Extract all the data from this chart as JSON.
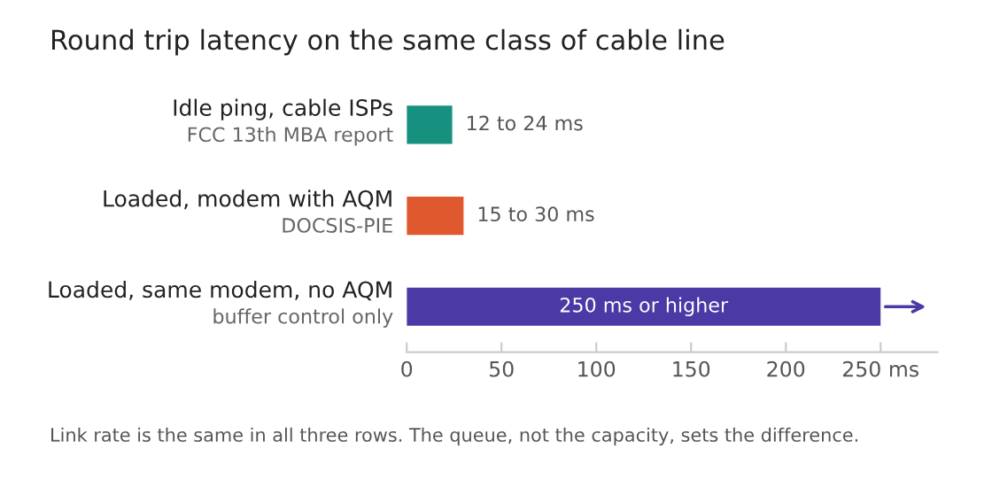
{
  "chart_data": {
    "type": "bar",
    "orientation": "horizontal",
    "title": "Round trip latency on the same class of cable line",
    "categories": [
      "Idle ping, cable ISPs\nFCC 13th MBA report",
      "Loaded, modem with AQM\nDOCSIS-PIE",
      "Loaded, same modem, no AQM\nbuffer control only"
    ],
    "values": [
      24,
      30,
      250
    ],
    "colors": [
      "#17917f",
      "#e0582e",
      "#4b3aa6"
    ],
    "value_labels": [
      "12 to 24 ms",
      "15 to 30 ms",
      "250 ms or higher"
    ],
    "xlim": [
      0,
      280
    ],
    "xticks": [
      0,
      50,
      100,
      150,
      200,
      {
        "value": 250,
        "label": "250 ms"
      }
    ],
    "grid": false,
    "annotations": [
      "Link rate is the same in all three rows. The queue, not the capacity, sets the difference."
    ]
  }
}
